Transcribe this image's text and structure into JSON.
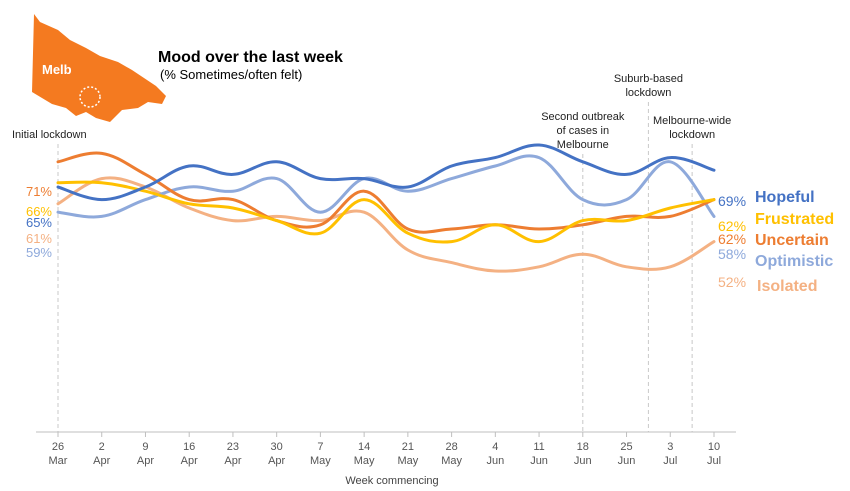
{
  "header": {
    "map_label": "Melb",
    "map_color": "#F47A20"
  },
  "chart_data": {
    "type": "line",
    "title": "Mood over the last week",
    "subtitle": "(% Sometimes/often felt)",
    "xlabel": "Week commencing",
    "categories": [
      [
        "26",
        "Mar"
      ],
      [
        "2",
        "Apr"
      ],
      [
        "9",
        "Apr"
      ],
      [
        "16",
        "Apr"
      ],
      [
        "23",
        "Apr"
      ],
      [
        "30",
        "Apr"
      ],
      [
        "7",
        "May"
      ],
      [
        "14",
        "May"
      ],
      [
        "21",
        "May"
      ],
      [
        "28",
        "May"
      ],
      [
        "4",
        "Jun"
      ],
      [
        "11",
        "Jun"
      ],
      [
        "18",
        "Jun"
      ],
      [
        "25",
        "Jun"
      ],
      [
        "3",
        "Jul"
      ],
      [
        "10",
        "Jul"
      ]
    ],
    "ylim": [
      0,
      80
    ],
    "grid": false,
    "series": [
      {
        "name": "Hopeful",
        "color": "#4472C4",
        "start_label": "65%",
        "end_label": "69%",
        "values": [
          65,
          62,
          65,
          70,
          68,
          71,
          67,
          67,
          65,
          70,
          72,
          75,
          71,
          68,
          72,
          69
        ]
      },
      {
        "name": "Optimistic",
        "color": "#8EA9DB",
        "start_label": "59%",
        "end_label": "58%",
        "values": [
          59,
          58,
          62,
          65,
          64,
          67,
          59,
          67,
          64,
          67,
          70,
          72,
          62,
          62,
          71,
          58
        ]
      },
      {
        "name": "Frustrated",
        "color": "#FFC000",
        "start_label": "66%",
        "end_label": "62%",
        "values": [
          66,
          66,
          64,
          61,
          60,
          57,
          54,
          62,
          54,
          52,
          56,
          52,
          57,
          57,
          60,
          62
        ]
      },
      {
        "name": "Uncertain",
        "color": "#ED7D31",
        "start_label": "71%",
        "end_label": "62%",
        "values": [
          71,
          73,
          68,
          62,
          62,
          57,
          56,
          64,
          55,
          55,
          56,
          55,
          56,
          58,
          58,
          62
        ]
      },
      {
        "name": "Isolated",
        "color": "#F4B183",
        "start_label": "61%",
        "end_label": "52%",
        "values": [
          61,
          67,
          65,
          60,
          57,
          58,
          57,
          59,
          50,
          47,
          45,
          46,
          49,
          46,
          46,
          52
        ]
      }
    ],
    "annotations": [
      {
        "at_index": 0,
        "lines": [
          "Initial lockdown"
        ]
      },
      {
        "at_index": 12,
        "lines": [
          "Second outbreak",
          "of cases in",
          "Melbourne"
        ]
      },
      {
        "at_index": 13.5,
        "lines": [
          "Suburb-based",
          "lockdown"
        ]
      },
      {
        "at_index": 14.5,
        "lines": [
          "Melbourne-wide",
          "lockdown"
        ]
      }
    ]
  }
}
